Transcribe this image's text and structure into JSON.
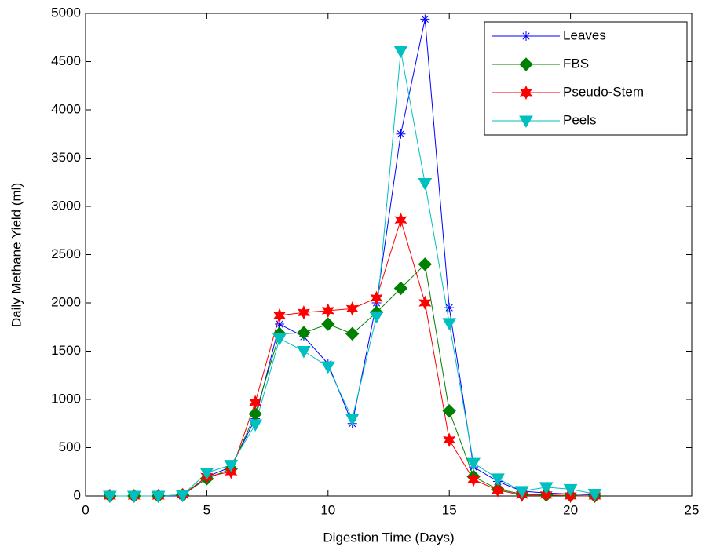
{
  "chart_data": {
    "type": "line",
    "xlabel": "Digestion Time (Days)",
    "ylabel": "Daily Methane Yield (ml)",
    "x": [
      1,
      2,
      3,
      4,
      5,
      6,
      7,
      8,
      9,
      10,
      11,
      12,
      13,
      14,
      15,
      16,
      17,
      18,
      19,
      20,
      21
    ],
    "series": [
      {
        "name": "Leaves",
        "color": "#0000ff",
        "marker": "star",
        "values": [
          0,
          0,
          0,
          0,
          200,
          300,
          800,
          1780,
          1650,
          1370,
          750,
          2000,
          3750,
          4940,
          1950,
          300,
          150,
          50,
          30,
          20,
          10
        ]
      },
      {
        "name": "FBS",
        "color": "#008000",
        "marker": "diamond",
        "values": [
          0,
          0,
          0,
          10,
          180,
          280,
          850,
          1680,
          1690,
          1780,
          1680,
          1900,
          2150,
          2400,
          880,
          200,
          70,
          20,
          10,
          5,
          0
        ]
      },
      {
        "name": "Pseudo-Stem",
        "color": "#ff0000",
        "marker": "hexagram",
        "values": [
          0,
          0,
          0,
          10,
          200,
          250,
          970,
          1870,
          1900,
          1920,
          1940,
          2050,
          2860,
          2000,
          580,
          170,
          60,
          10,
          10,
          0,
          0
        ]
      },
      {
        "name": "Peels",
        "color": "#00bfbf",
        "marker": "triangle-down",
        "values": [
          0,
          0,
          0,
          10,
          240,
          320,
          740,
          1630,
          1500,
          1340,
          800,
          1860,
          4610,
          3240,
          1790,
          340,
          180,
          50,
          90,
          70,
          20
        ]
      }
    ],
    "xlim": [
      0,
      25
    ],
    "xticks": [
      0,
      5,
      10,
      15,
      20,
      25
    ],
    "ylim": [
      0,
      5000
    ],
    "yticks": [
      0,
      500,
      1000,
      1500,
      2000,
      2500,
      3000,
      3500,
      4000,
      4500,
      5000
    ],
    "grid": false,
    "legend": "upper-right"
  }
}
